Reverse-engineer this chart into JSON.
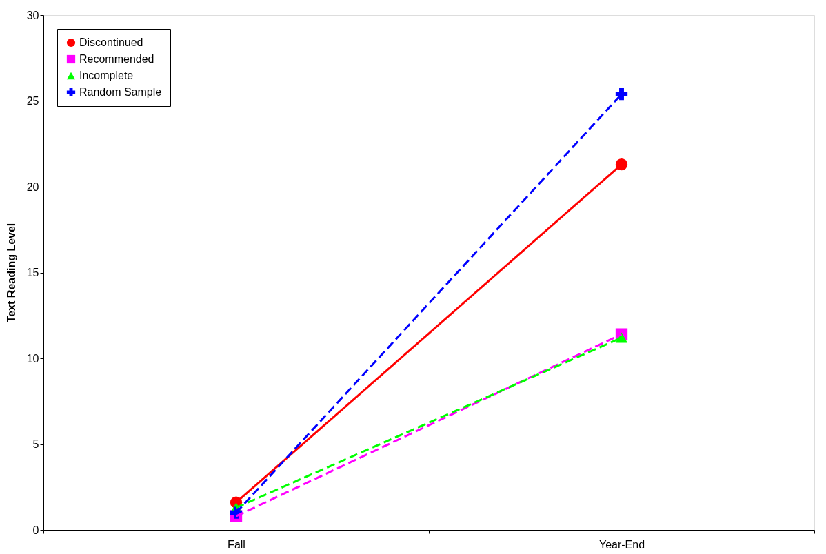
{
  "chart_data": {
    "type": "line",
    "ylabel": "Text Reading Level",
    "categories": [
      "Fall",
      "Year-End"
    ],
    "ylim": [
      0,
      30
    ],
    "yticks": [
      0,
      5,
      10,
      15,
      20,
      25,
      30
    ],
    "grid": false,
    "legend": "top left",
    "series": [
      {
        "name": "Discontinued",
        "color": "#ff0000",
        "marker": "circle",
        "line_style": "solid",
        "values": [
          1.6,
          21.3
        ]
      },
      {
        "name": "Recommended",
        "color": "#ff00ff",
        "marker": "square",
        "line_style": "dashed",
        "values": [
          0.8,
          11.4
        ]
      },
      {
        "name": "Incomplete",
        "color": "#00ff00",
        "marker": "triangle",
        "line_style": "dashed",
        "values": [
          1.3,
          11.2
        ]
      },
      {
        "name": "Random Sample",
        "color": "#0000ff",
        "marker": "cross",
        "line_style": "dashed",
        "values": [
          1.0,
          25.4
        ]
      }
    ]
  }
}
